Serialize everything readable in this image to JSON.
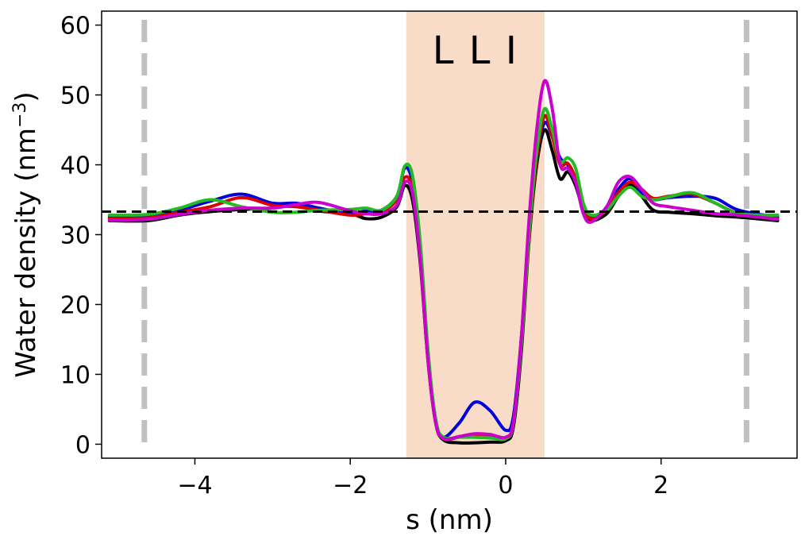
{
  "chart_data": {
    "type": "line",
    "title": "",
    "xlabel": "s (nm)",
    "ylabel_main": "Water density (nm",
    "ylabel_sup": "−3",
    "ylabel_close": ")",
    "xlim": [
      -5.2,
      3.75
    ],
    "ylim": [
      -2,
      62
    ],
    "xticks": [
      -4,
      -2,
      0,
      2
    ],
    "xtick_labels": [
      "−4",
      "−2",
      "0",
      "2"
    ],
    "yticks": [
      0,
      10,
      20,
      30,
      40,
      50,
      60
    ],
    "ytick_labels": [
      "0",
      "10",
      "20",
      "30",
      "40",
      "50",
      "60"
    ],
    "grid": false,
    "shaded_region": {
      "x_start": -1.28,
      "x_end": 0.5,
      "label": "L L I",
      "color": "#f8dcc8"
    },
    "reference_hline": {
      "y": 33.3,
      "style": "dashed",
      "color": "#000000"
    },
    "reference_vlines": [
      {
        "x": -4.65,
        "style": "dashed",
        "color": "#c0c0c0"
      },
      {
        "x": 3.1,
        "style": "dashed",
        "color": "#c0c0c0"
      }
    ],
    "series": [
      {
        "color": "#000000",
        "points": [
          [
            -5.1,
            32.0
          ],
          [
            -4.6,
            32.0
          ],
          [
            -4.2,
            32.8
          ],
          [
            -3.8,
            33.3
          ],
          [
            -3.4,
            33.6
          ],
          [
            -3.0,
            33.8
          ],
          [
            -2.7,
            34.2
          ],
          [
            -2.4,
            33.4
          ],
          [
            -2.0,
            33.0
          ],
          [
            -1.8,
            32.3
          ],
          [
            -1.6,
            32.5
          ],
          [
            -1.4,
            34.0
          ],
          [
            -1.3,
            37.0
          ],
          [
            -1.2,
            35.0
          ],
          [
            -1.1,
            26.0
          ],
          [
            -1.0,
            12.0
          ],
          [
            -0.9,
            3.0
          ],
          [
            -0.8,
            0.6
          ],
          [
            -0.6,
            0.2
          ],
          [
            -0.4,
            0.2
          ],
          [
            -0.2,
            0.3
          ],
          [
            0.0,
            0.5
          ],
          [
            0.1,
            2.5
          ],
          [
            0.2,
            13.0
          ],
          [
            0.3,
            29.0
          ],
          [
            0.4,
            40.0
          ],
          [
            0.5,
            45.0
          ],
          [
            0.6,
            42.0
          ],
          [
            0.7,
            38.0
          ],
          [
            0.8,
            39.0
          ],
          [
            0.9,
            37.0
          ],
          [
            1.0,
            33.5
          ],
          [
            1.1,
            32.0
          ],
          [
            1.3,
            33.0
          ],
          [
            1.45,
            35.5
          ],
          [
            1.6,
            37.2
          ],
          [
            1.75,
            35.5
          ],
          [
            1.9,
            33.5
          ],
          [
            2.1,
            33.2
          ],
          [
            2.4,
            33.0
          ],
          [
            2.7,
            32.7
          ],
          [
            3.0,
            32.5
          ],
          [
            3.5,
            32.0
          ]
        ]
      },
      {
        "color": "#0000dd",
        "points": [
          [
            -5.1,
            32.5
          ],
          [
            -4.6,
            32.6
          ],
          [
            -4.2,
            33.5
          ],
          [
            -3.8,
            34.8
          ],
          [
            -3.4,
            35.8
          ],
          [
            -3.0,
            34.5
          ],
          [
            -2.7,
            34.5
          ],
          [
            -2.4,
            33.8
          ],
          [
            -2.0,
            33.0
          ],
          [
            -1.8,
            33.4
          ],
          [
            -1.6,
            33.5
          ],
          [
            -1.4,
            35.5
          ],
          [
            -1.3,
            39.5
          ],
          [
            -1.2,
            37.5
          ],
          [
            -1.1,
            28.0
          ],
          [
            -1.0,
            13.0
          ],
          [
            -0.9,
            3.5
          ],
          [
            -0.8,
            1.0
          ],
          [
            -0.6,
            3.0
          ],
          [
            -0.4,
            6.0
          ],
          [
            -0.2,
            4.8
          ],
          [
            0.0,
            2.0
          ],
          [
            0.1,
            4.0
          ],
          [
            0.2,
            15.0
          ],
          [
            0.3,
            30.0
          ],
          [
            0.4,
            41.0
          ],
          [
            0.5,
            46.0
          ],
          [
            0.6,
            44.0
          ],
          [
            0.7,
            41.0
          ],
          [
            0.8,
            40.0
          ],
          [
            0.9,
            38.0
          ],
          [
            1.0,
            34.0
          ],
          [
            1.1,
            32.5
          ],
          [
            1.3,
            33.8
          ],
          [
            1.45,
            36.5
          ],
          [
            1.6,
            38.0
          ],
          [
            1.75,
            36.0
          ],
          [
            1.9,
            35.0
          ],
          [
            2.1,
            35.3
          ],
          [
            2.4,
            35.5
          ],
          [
            2.7,
            35.2
          ],
          [
            3.0,
            33.5
          ],
          [
            3.5,
            32.5
          ]
        ]
      },
      {
        "color": "#dd0000",
        "points": [
          [
            -5.1,
            32.3
          ],
          [
            -4.6,
            32.4
          ],
          [
            -4.2,
            33.2
          ],
          [
            -3.8,
            34.0
          ],
          [
            -3.4,
            35.3
          ],
          [
            -3.0,
            34.2
          ],
          [
            -2.7,
            34.0
          ],
          [
            -2.4,
            33.5
          ],
          [
            -2.0,
            32.8
          ],
          [
            -1.8,
            33.0
          ],
          [
            -1.6,
            33.2
          ],
          [
            -1.4,
            35.0
          ],
          [
            -1.3,
            38.2
          ],
          [
            -1.2,
            36.5
          ],
          [
            -1.1,
            27.0
          ],
          [
            -1.0,
            12.5
          ],
          [
            -0.9,
            3.2
          ],
          [
            -0.8,
            0.8
          ],
          [
            -0.6,
            1.0
          ],
          [
            -0.4,
            1.2
          ],
          [
            -0.2,
            1.0
          ],
          [
            0.0,
            0.8
          ],
          [
            0.1,
            3.0
          ],
          [
            0.2,
            14.0
          ],
          [
            0.3,
            29.5
          ],
          [
            0.4,
            41.0
          ],
          [
            0.5,
            47.0
          ],
          [
            0.6,
            44.0
          ],
          [
            0.7,
            40.0
          ],
          [
            0.8,
            40.2
          ],
          [
            0.9,
            38.0
          ],
          [
            1.0,
            34.0
          ],
          [
            1.1,
            32.3
          ],
          [
            1.3,
            33.5
          ],
          [
            1.45,
            36.0
          ],
          [
            1.6,
            37.5
          ],
          [
            1.75,
            36.5
          ],
          [
            1.9,
            35.2
          ],
          [
            2.1,
            35.5
          ],
          [
            2.4,
            35.8
          ],
          [
            2.7,
            34.5
          ],
          [
            3.0,
            33.0
          ],
          [
            3.5,
            32.3
          ]
        ]
      },
      {
        "color": "#22bb22",
        "points": [
          [
            -5.1,
            32.8
          ],
          [
            -4.6,
            32.9
          ],
          [
            -4.2,
            33.8
          ],
          [
            -3.8,
            35.0
          ],
          [
            -3.4,
            34.0
          ],
          [
            -3.0,
            33.2
          ],
          [
            -2.7,
            33.2
          ],
          [
            -2.4,
            33.5
          ],
          [
            -2.0,
            33.6
          ],
          [
            -1.8,
            33.8
          ],
          [
            -1.6,
            33.5
          ],
          [
            -1.4,
            35.5
          ],
          [
            -1.3,
            39.8
          ],
          [
            -1.2,
            38.5
          ],
          [
            -1.1,
            29.0
          ],
          [
            -1.0,
            13.5
          ],
          [
            -0.9,
            3.5
          ],
          [
            -0.8,
            1.0
          ],
          [
            -0.6,
            1.0
          ],
          [
            -0.4,
            1.0
          ],
          [
            -0.2,
            0.9
          ],
          [
            0.0,
            0.8
          ],
          [
            0.1,
            3.0
          ],
          [
            0.2,
            14.0
          ],
          [
            0.3,
            30.0
          ],
          [
            0.4,
            42.0
          ],
          [
            0.5,
            48.0
          ],
          [
            0.6,
            45.0
          ],
          [
            0.7,
            40.5
          ],
          [
            0.8,
            41.0
          ],
          [
            0.9,
            39.5
          ],
          [
            1.0,
            34.5
          ],
          [
            1.1,
            32.8
          ],
          [
            1.3,
            33.5
          ],
          [
            1.45,
            35.5
          ],
          [
            1.6,
            36.8
          ],
          [
            1.75,
            35.5
          ],
          [
            1.9,
            35.0
          ],
          [
            2.1,
            35.4
          ],
          [
            2.4,
            36.0
          ],
          [
            2.7,
            34.5
          ],
          [
            3.0,
            33.0
          ],
          [
            3.5,
            32.8
          ]
        ]
      },
      {
        "color": "#cc00cc",
        "points": [
          [
            -5.1,
            32.1
          ],
          [
            -4.6,
            32.2
          ],
          [
            -4.2,
            32.9
          ],
          [
            -3.8,
            33.5
          ],
          [
            -3.4,
            33.8
          ],
          [
            -3.0,
            33.8
          ],
          [
            -2.7,
            34.3
          ],
          [
            -2.4,
            34.6
          ],
          [
            -2.0,
            33.4
          ],
          [
            -1.8,
            33.0
          ],
          [
            -1.6,
            33.0
          ],
          [
            -1.4,
            34.2
          ],
          [
            -1.3,
            37.5
          ],
          [
            -1.2,
            36.0
          ],
          [
            -1.1,
            26.5
          ],
          [
            -1.0,
            12.0
          ],
          [
            -0.9,
            3.0
          ],
          [
            -0.8,
            0.8
          ],
          [
            -0.6,
            1.1
          ],
          [
            -0.4,
            1.5
          ],
          [
            -0.2,
            1.4
          ],
          [
            0.0,
            1.0
          ],
          [
            0.1,
            3.2
          ],
          [
            0.2,
            15.0
          ],
          [
            0.3,
            32.0
          ],
          [
            0.4,
            45.0
          ],
          [
            0.5,
            52.0
          ],
          [
            0.6,
            48.0
          ],
          [
            0.7,
            40.0
          ],
          [
            0.8,
            39.5
          ],
          [
            0.9,
            37.5
          ],
          [
            1.0,
            33.0
          ],
          [
            1.1,
            31.8
          ],
          [
            1.3,
            34.0
          ],
          [
            1.45,
            37.5
          ],
          [
            1.6,
            38.3
          ],
          [
            1.75,
            36.5
          ],
          [
            1.9,
            34.5
          ],
          [
            2.1,
            34.0
          ],
          [
            2.4,
            33.5
          ],
          [
            2.7,
            33.0
          ],
          [
            3.0,
            32.8
          ],
          [
            3.5,
            32.2
          ]
        ]
      }
    ]
  }
}
